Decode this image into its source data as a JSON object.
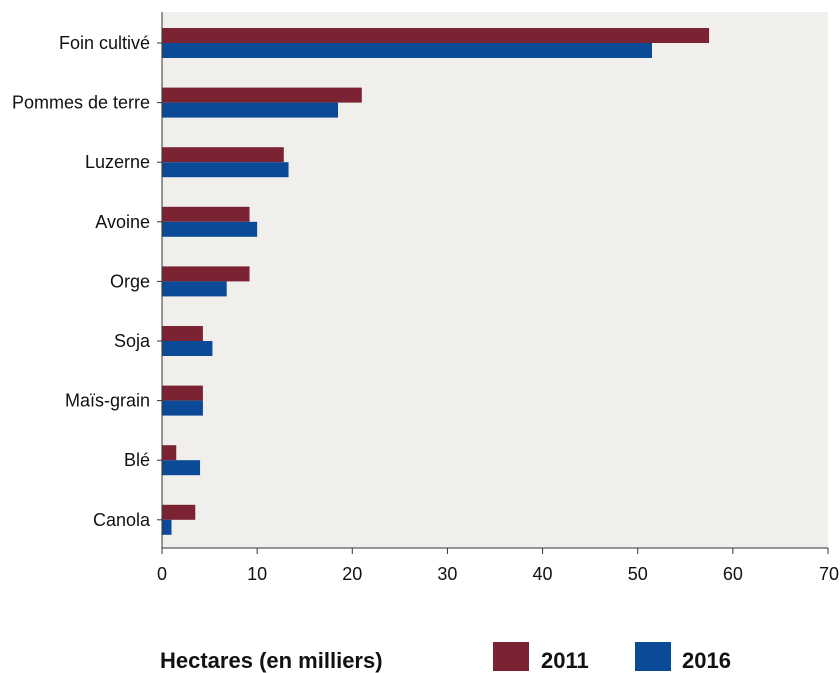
{
  "chart_data": {
    "type": "bar",
    "orientation": "horizontal",
    "categories": [
      "Foin cultivé",
      "Pommes de terre",
      "Luzerne",
      "Avoine",
      "Orge",
      "Soja",
      "Maïs-grain",
      "Blé",
      "Canola"
    ],
    "series": [
      {
        "name": "2011",
        "color": "#7b2332",
        "values": [
          57.5,
          21.0,
          12.8,
          9.2,
          9.2,
          4.3,
          4.3,
          1.5,
          3.5
        ]
      },
      {
        "name": "2016",
        "color": "#0a4a97",
        "values": [
          51.5,
          18.5,
          13.3,
          10.0,
          6.8,
          5.3,
          4.3,
          4.0,
          1.0
        ]
      }
    ],
    "xlabel": "Hectares (en milliers)",
    "ylabel": "",
    "xlim": [
      0,
      70
    ],
    "x_ticks": [
      "0",
      "10",
      "20",
      "30",
      "40",
      "50",
      "60",
      "70"
    ],
    "plot_background": "#f1efec",
    "grid": false,
    "legend": {
      "placement": "bottom",
      "title": "Hectares (en milliers)",
      "entries": [
        "2011",
        "2016"
      ]
    }
  }
}
